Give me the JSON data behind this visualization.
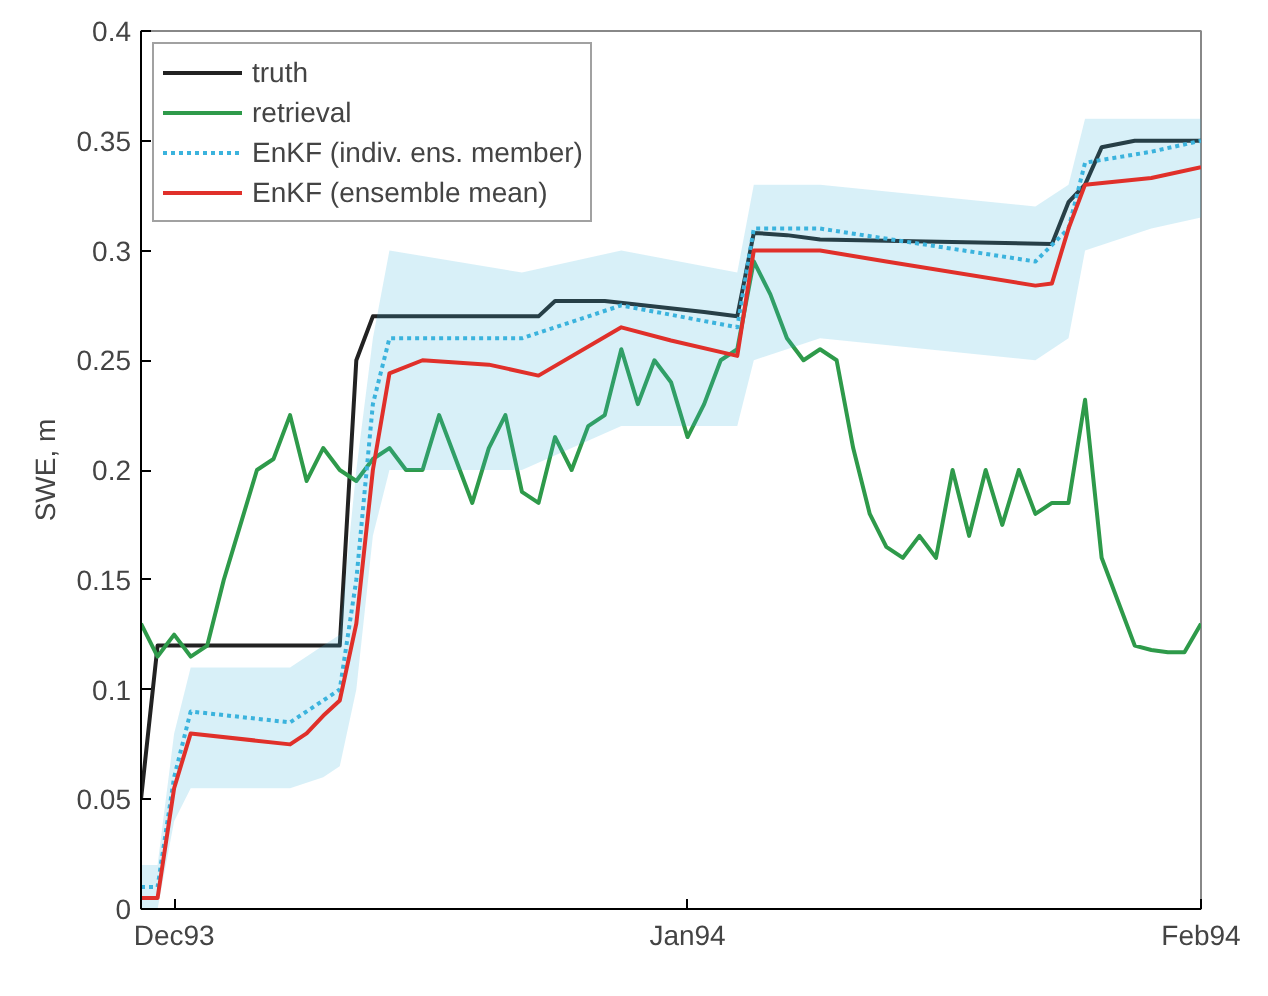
{
  "chart_data": {
    "type": "line",
    "ylabel": "SWE, m",
    "xlim": [
      "1993-11-29",
      "1994-02-01"
    ],
    "ylim": [
      0,
      0.4
    ],
    "xticks": [
      {
        "value": "1993-12-01",
        "label": "Dec93"
      },
      {
        "value": "1994-01-01",
        "label": "Jan94"
      },
      {
        "value": "1994-02-01",
        "label": "Feb94"
      }
    ],
    "yticks": [
      0,
      0.05,
      0.1,
      0.15,
      0.2,
      0.25,
      0.3,
      0.35,
      0.4
    ],
    "grid": false,
    "legend": "top left",
    "marker": "none",
    "series": [
      {
        "name": "truth",
        "color": "#222222",
        "line_style": "solid",
        "x": [
          "1993-11-29",
          "1993-11-30",
          "1993-12-11",
          "1993-12-12",
          "1993-12-13",
          "1993-12-23",
          "1993-12-24",
          "1993-12-27",
          "1994-01-02",
          "1994-01-04",
          "1994-01-05",
          "1994-01-07",
          "1994-01-09",
          "1994-01-23",
          "1994-01-24",
          "1994-01-25",
          "1994-01-26",
          "1994-01-28",
          "1994-02-01"
        ],
        "values": [
          0.05,
          0.12,
          0.12,
          0.25,
          0.27,
          0.27,
          0.277,
          0.277,
          0.272,
          0.27,
          0.308,
          0.307,
          0.305,
          0.303,
          0.322,
          0.33,
          0.347,
          0.35,
          0.35
        ]
      },
      {
        "name": "retrieval",
        "color": "#2e9a4a",
        "line_style": "solid",
        "x": [
          "1993-11-29",
          "1993-11-30",
          "1993-12-01",
          "1993-12-02",
          "1993-12-03",
          "1993-12-04",
          "1993-12-05",
          "1993-12-06",
          "1993-12-07",
          "1993-12-08",
          "1993-12-09",
          "1993-12-10",
          "1993-12-11",
          "1993-12-12",
          "1993-12-13",
          "1993-12-14",
          "1993-12-15",
          "1993-12-16",
          "1993-12-17",
          "1993-12-18",
          "1993-12-19",
          "1993-12-20",
          "1993-12-21",
          "1993-12-22",
          "1993-12-23",
          "1993-12-24",
          "1993-12-25",
          "1993-12-26",
          "1993-12-27",
          "1993-12-28",
          "1993-12-29",
          "1993-12-30",
          "1993-12-31",
          "1994-01-01",
          "1994-01-02",
          "1994-01-03",
          "1994-01-04",
          "1994-01-05",
          "1994-01-06",
          "1994-01-07",
          "1994-01-08",
          "1994-01-09",
          "1994-01-10",
          "1994-01-11",
          "1994-01-12",
          "1994-01-13",
          "1994-01-14",
          "1994-01-15",
          "1994-01-16",
          "1994-01-17",
          "1994-01-18",
          "1994-01-19",
          "1994-01-20",
          "1994-01-21",
          "1994-01-22",
          "1994-01-23",
          "1994-01-24",
          "1994-01-25",
          "1994-01-26",
          "1994-01-27",
          "1994-01-28",
          "1994-01-29",
          "1994-01-30",
          "1994-01-31",
          "1994-02-01"
        ],
        "values": [
          0.13,
          0.115,
          0.125,
          0.115,
          0.12,
          0.15,
          0.175,
          0.2,
          0.205,
          0.225,
          0.195,
          0.21,
          0.2,
          0.195,
          0.205,
          0.21,
          0.2,
          0.2,
          0.225,
          0.205,
          0.185,
          0.21,
          0.225,
          0.19,
          0.185,
          0.215,
          0.2,
          0.22,
          0.225,
          0.255,
          0.23,
          0.25,
          0.24,
          0.215,
          0.23,
          0.25,
          0.255,
          0.295,
          0.28,
          0.26,
          0.25,
          0.255,
          0.25,
          0.21,
          0.18,
          0.165,
          0.16,
          0.17,
          0.16,
          0.2,
          0.17,
          0.2,
          0.175,
          0.2,
          0.18,
          0.185,
          0.185,
          0.232,
          0.16,
          0.14,
          0.12,
          0.118,
          0.117,
          0.117,
          0.13
        ]
      },
      {
        "name": "EnKF (indiv. ens. member)",
        "color": "#3bb3dd",
        "line_style": "dotted",
        "x": [
          "1993-11-29",
          "1993-11-30",
          "1993-12-01",
          "1993-12-02",
          "1993-12-08",
          "1993-12-10",
          "1993-12-11",
          "1993-12-12",
          "1993-12-13",
          "1993-12-14",
          "1993-12-22",
          "1993-12-28",
          "1994-01-04",
          "1994-01-05",
          "1994-01-09",
          "1994-01-22",
          "1994-01-24",
          "1994-01-25",
          "1994-01-29",
          "1994-02-01"
        ],
        "values": [
          0.01,
          0.01,
          0.06,
          0.09,
          0.085,
          0.095,
          0.1,
          0.15,
          0.23,
          0.26,
          0.26,
          0.275,
          0.265,
          0.31,
          0.31,
          0.295,
          0.31,
          0.34,
          0.345,
          0.35
        ],
        "lower": [
          0.0,
          0.0,
          0.04,
          0.055,
          0.055,
          0.06,
          0.065,
          0.1,
          0.17,
          0.2,
          0.2,
          0.22,
          0.22,
          0.25,
          0.26,
          0.25,
          0.26,
          0.3,
          0.31,
          0.315
        ],
        "upper": [
          0.02,
          0.02,
          0.08,
          0.11,
          0.11,
          0.12,
          0.125,
          0.2,
          0.26,
          0.3,
          0.29,
          0.3,
          0.29,
          0.33,
          0.33,
          0.32,
          0.33,
          0.36,
          0.36,
          0.36
        ]
      },
      {
        "name": "EnKF (ensemble mean)",
        "color": "#e0302a",
        "line_style": "solid",
        "x": [
          "1993-11-29",
          "1993-11-30",
          "1993-12-01",
          "1993-12-02",
          "1993-12-08",
          "1993-12-09",
          "1993-12-10",
          "1993-12-11",
          "1993-12-12",
          "1993-12-13",
          "1993-12-14",
          "1993-12-16",
          "1993-12-20",
          "1993-12-23",
          "1993-12-28",
          "1993-12-31",
          "1994-01-04",
          "1994-01-05",
          "1994-01-09",
          "1994-01-13",
          "1994-01-22",
          "1994-01-23",
          "1994-01-24",
          "1994-01-25",
          "1994-01-29",
          "1994-02-01"
        ],
        "values": [
          0.005,
          0.005,
          0.055,
          0.08,
          0.075,
          0.08,
          0.088,
          0.095,
          0.13,
          0.2,
          0.244,
          0.25,
          0.248,
          0.243,
          0.265,
          0.259,
          0.252,
          0.3,
          0.3,
          0.295,
          0.284,
          0.285,
          0.31,
          0.33,
          0.333,
          0.338
        ]
      }
    ]
  }
}
